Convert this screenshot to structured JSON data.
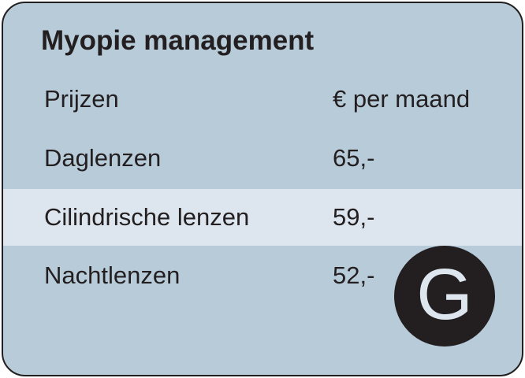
{
  "card": {
    "title": "Myopie management",
    "header": {
      "name": "Prijzen",
      "price": "€ per maand"
    },
    "rows": [
      {
        "name": "Daglenzen",
        "price": "65,-"
      },
      {
        "name": "Cilindrische lenzen",
        "price": "59,-"
      },
      {
        "name": "Nachtlenzen",
        "price": "52,-"
      }
    ],
    "badge_letter": "G"
  },
  "colors": {
    "card_background": "#b8cbd9",
    "highlight_row": "#dde6ee",
    "text": "#231f20",
    "badge_background": "#231f20",
    "badge_letter": "#dde6ee"
  }
}
